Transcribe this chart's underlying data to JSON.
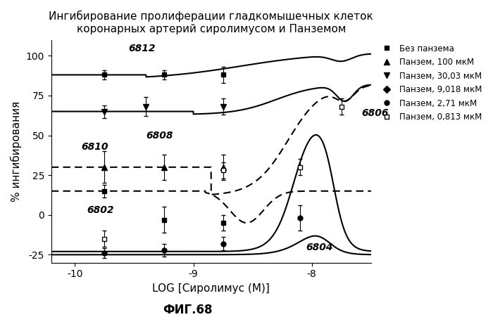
{
  "title": "Ингибирование пролиферации гладкомышечных клеток\nкоронарных артерий сиролимусом и Панземом",
  "xlabel": "LOG [Сиролимус (М)]",
  "ylabel": "% ингибирования",
  "fig_label": "ФИГ.68",
  "xlim": [
    -10.2,
    -7.5
  ],
  "ylim": [
    -30,
    110
  ],
  "xticks": [
    -10,
    -9,
    -8
  ],
  "yticks": [
    -25,
    0,
    25,
    50,
    75,
    100
  ]
}
